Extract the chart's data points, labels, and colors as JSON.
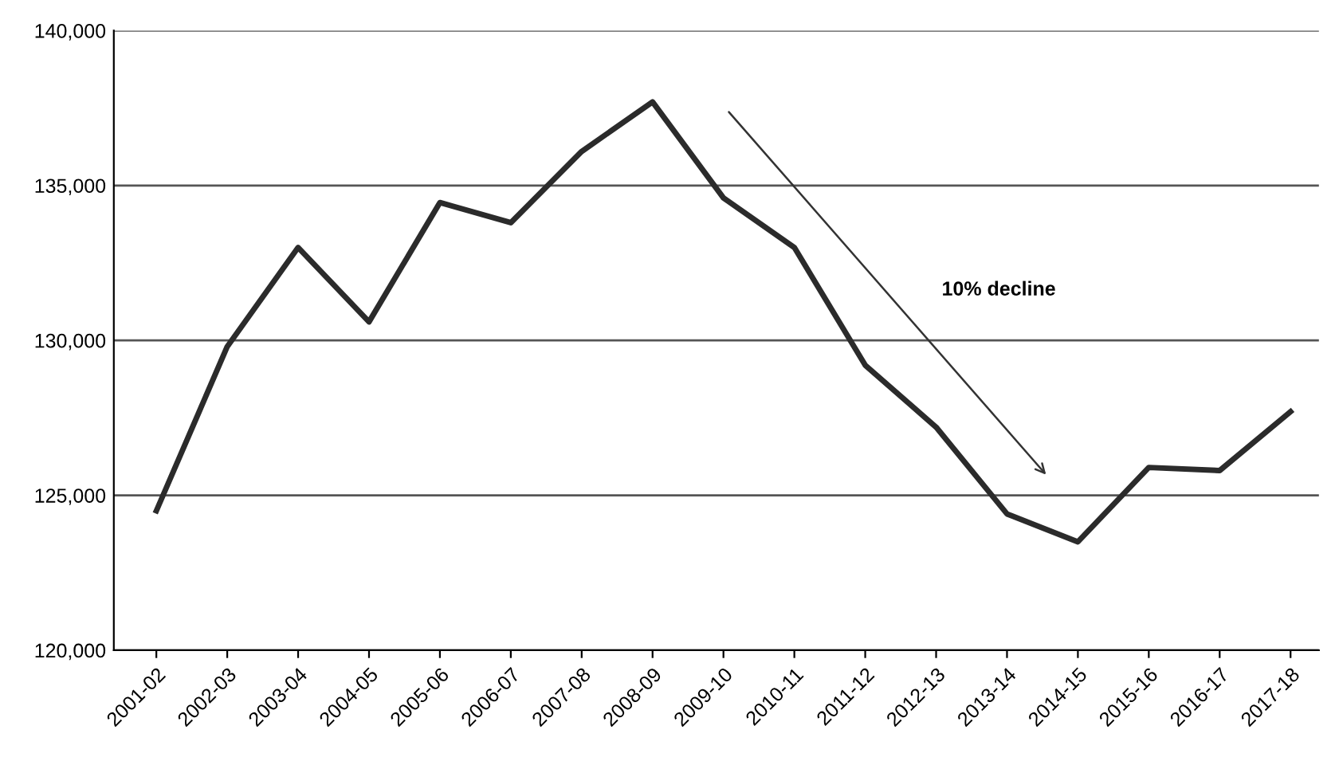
{
  "chart_data": {
    "type": "line",
    "categories": [
      "2001-02",
      "2002-03",
      "2003-04",
      "2004-05",
      "2005-06",
      "2006-07",
      "2007-08",
      "2008-09",
      "2009-10",
      "2010-11",
      "2011-12",
      "2012-13",
      "2013-14",
      "2014-15",
      "2015-16",
      "2016-17",
      "2017-18"
    ],
    "series": [
      {
        "color": "#2b2b2b",
        "values": [
          124500,
          129800,
          133000,
          130600,
          134450,
          133800,
          136100,
          137700,
          134600,
          133000,
          129200,
          127200,
          124400,
          123500,
          125900,
          125800,
          127700
        ]
      }
    ],
    "ylim": [
      120000,
      140000
    ],
    "yticks": [
      {
        "value": 120000,
        "label": "120,000"
      },
      {
        "value": 125000,
        "label": "125,000"
      },
      {
        "value": 130000,
        "label": "130,000"
      },
      {
        "value": 135000,
        "label": "135,000"
      },
      {
        "value": 140000,
        "label": "140,000"
      }
    ],
    "grid": "y",
    "marker": "none",
    "line_style": "solid",
    "annotations": [
      "10% decline"
    ]
  }
}
